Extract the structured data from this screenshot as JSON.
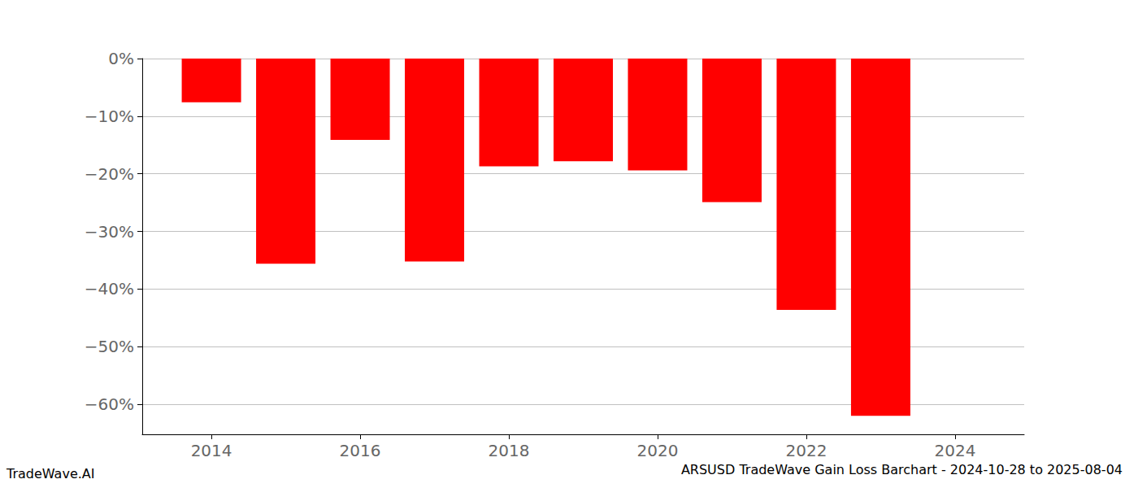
{
  "chart_data": {
    "type": "bar",
    "title": "ARSUSD TradeWave Gain Loss Barchart - 2024-10-28 to 2025-08-04",
    "annotations": [
      "TradeWave.AI"
    ],
    "x": [
      2014,
      2015,
      2016,
      2017,
      2018,
      2019,
      2020,
      2021,
      2022,
      2023
    ],
    "values": [
      -7.6,
      -35.6,
      -14.1,
      -35.2,
      -18.7,
      -17.8,
      -19.4,
      -24.9,
      -43.6,
      -62.0
    ],
    "color": "#ff0000",
    "xlim": [
      2013.07,
      2024.93
    ],
    "xticks": [
      2014,
      2016,
      2018,
      2020,
      2022,
      2024
    ],
    "ylim": [
      -65.2,
      0
    ],
    "yticks": [
      {
        "value": 0,
        "label": "0%"
      },
      {
        "value": -10,
        "label": "−10%"
      },
      {
        "value": -20,
        "label": "−20%"
      },
      {
        "value": -30,
        "label": "−30%"
      },
      {
        "value": -40,
        "label": "−40%"
      },
      {
        "value": -50,
        "label": "−50%"
      },
      {
        "value": -60,
        "label": "−60%"
      }
    ],
    "grid": true
  }
}
